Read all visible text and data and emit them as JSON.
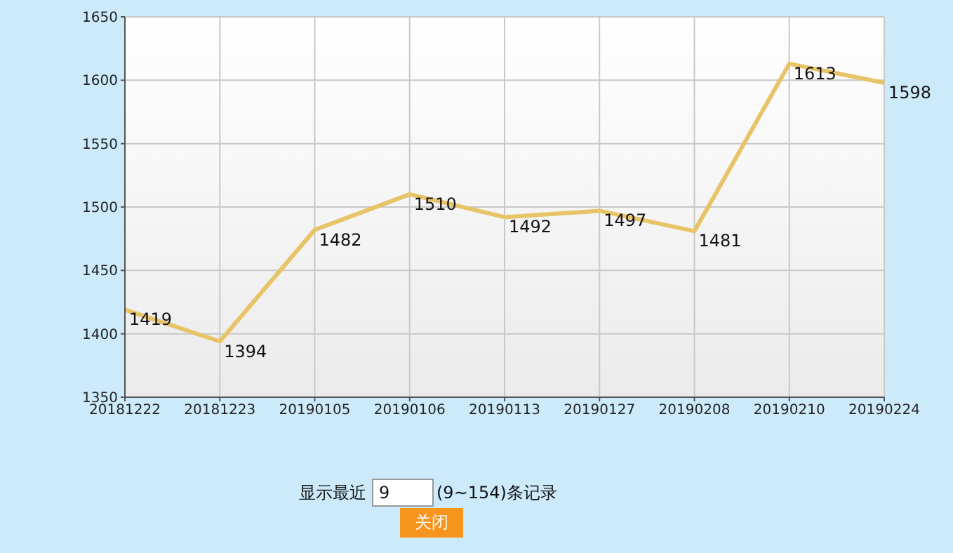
{
  "chart_data": {
    "type": "line",
    "categories": [
      "20181222",
      "20181223",
      "20190105",
      "20190106",
      "20190113",
      "20190127",
      "20190208",
      "20190210",
      "20190224"
    ],
    "series": [
      {
        "color": "#e8c468",
        "values": [
          1419,
          1394,
          1482,
          1510,
          1492,
          1497,
          1481,
          1613,
          1598
        ]
      }
    ],
    "ylim": [
      1350,
      1650
    ],
    "yticks": [
      1350,
      1400,
      1450,
      1500,
      1550,
      1600,
      1650
    ],
    "grid": true,
    "data_labels": true,
    "marker": "none",
    "line_style": "solid",
    "annotations": [
      "显示最近",
      "9",
      "(9~154)条记录",
      "关闭"
    ]
  }
}
